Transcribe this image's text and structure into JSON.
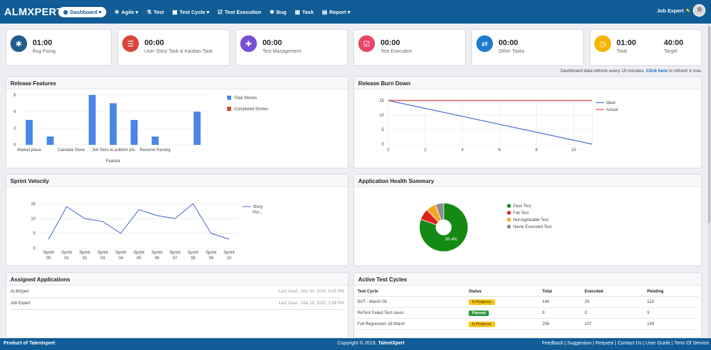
{
  "topbar": {
    "logo": "ALMXPERT",
    "nav": [
      {
        "label": "Dashboard",
        "icon": "palette-icon",
        "caret": "▾"
      },
      {
        "label": "Agile",
        "icon": "gear-icon",
        "caret": "▾"
      },
      {
        "label": "Test",
        "icon": "flask-icon",
        "caret": ""
      },
      {
        "label": "Test Cycle",
        "icon": "cycle-icon",
        "caret": "▾"
      },
      {
        "label": "Test Execution",
        "icon": "checkbox-icon",
        "caret": ""
      },
      {
        "label": "Bug",
        "icon": "bug-icon",
        "caret": ""
      },
      {
        "label": "Task",
        "icon": "task-icon",
        "caret": ""
      },
      {
        "label": "Report",
        "icon": "report-icon",
        "caret": "▾"
      }
    ],
    "user": "Job Expert"
  },
  "stats": [
    {
      "value": "01:00",
      "label": "Bug Fixing",
      "color": "#1f5d8c",
      "icon": "bug-icon"
    },
    {
      "value": "00:00",
      "label": "User Story Task & Kanban Task",
      "color": "#d9453a",
      "icon": "list-icon"
    },
    {
      "value": "00:00",
      "label": "Test Management",
      "color": "#7a4fd6",
      "icon": "plus-icon"
    },
    {
      "value": "00:00",
      "label": "Test Execution",
      "color": "#e8476a",
      "icon": "checkbox-icon"
    },
    {
      "value": "00:00",
      "label": "Other Tasks",
      "color": "#1d7ccf",
      "icon": "handshake-icon"
    },
    {
      "value": "01:00",
      "label": "Total",
      "value2": "40:00",
      "label2": "Target",
      "color": "#f4b400",
      "icon": "clock-icon"
    }
  ],
  "refresh": {
    "text": "Dashboard data refresh every 15 minutes.",
    "link": "Click here",
    "suffix": "to refresh it now."
  },
  "panels": {
    "release_features": "Release Features",
    "burn_down": "Release Burn Down",
    "velocity": "Sprint Velocity",
    "health": "Application Health Summary",
    "assigned": "Assigned Applications",
    "cycles": "Active Test Cycles"
  },
  "chart_data": [
    {
      "type": "bar",
      "xlabel": "Feature",
      "ylabel": "",
      "ylim": [
        0,
        6
      ],
      "yticks": [
        "0",
        "2",
        "4",
        "6"
      ],
      "categories": [
        "Market place",
        "",
        "Candate Store",
        "",
        "Job Slots to publish job",
        "",
        "Resume Parsing",
        "",
        ""
      ],
      "series": [
        {
          "name": "Total Stories",
          "color": "#4a86e8",
          "values": [
            3,
            1,
            0,
            6,
            5,
            3,
            1,
            0,
            4
          ]
        },
        {
          "name": "Completed Stories",
          "color": "#d9453a",
          "values": [
            0,
            0,
            0,
            0,
            0,
            0,
            0,
            0,
            0
          ]
        }
      ],
      "legend": "right"
    },
    {
      "type": "line",
      "xlim": [
        0,
        11
      ],
      "ylim": [
        0,
        15
      ],
      "xticks": [
        "0",
        "2",
        "4",
        "6",
        "8",
        "10"
      ],
      "yticks": [
        "0",
        "5",
        "10",
        "15"
      ],
      "series": [
        {
          "name": "Ideal",
          "color": "#4a6fd0",
          "x": [
            0,
            11
          ],
          "y": [
            15,
            0
          ]
        },
        {
          "name": "Actual",
          "color": "#d9453a",
          "x": [
            0,
            11
          ],
          "y": [
            15,
            15
          ]
        }
      ],
      "legend": "right"
    },
    {
      "type": "line",
      "ylim": [
        0,
        15
      ],
      "yticks": [
        "0",
        "5",
        "10",
        "15"
      ],
      "categories": [
        "Sprint 00",
        "Sprint 01",
        "Sprint 02",
        "Sprint 03",
        "Sprint 04",
        "Sprint 05",
        "Sprint 06",
        "Sprint 07",
        "Sprint 08",
        "Sprint 09",
        "Sprint 10"
      ],
      "series": [
        {
          "name": "Story Poi...",
          "color": "#4a6fd0",
          "values": [
            3,
            14,
            10,
            9,
            5,
            13,
            11,
            10,
            15,
            5,
            3
          ]
        }
      ],
      "legend": "right"
    },
    {
      "type": "pie",
      "center_label": "80.4%",
      "slices": [
        {
          "name": "Pass Test",
          "value": 80.4,
          "color": "#148a14"
        },
        {
          "name": "Fail Test",
          "value": 7.4,
          "color": "#e0201b"
        },
        {
          "name": "Not Applicable Test",
          "value": 6.7,
          "color": "#f5a623"
        },
        {
          "name": "Never Executed Test",
          "value": 5.5,
          "color": "#8c8c8c"
        }
      ],
      "legend": "right"
    }
  ],
  "assigned": [
    {
      "name": "ALMXpert",
      "last_used": "Last Used - Nov 20, 2019, 5:05 PM"
    },
    {
      "name": "Job Expert",
      "last_used": "Last Used - Mar 18, 2020, 2:49 PM"
    }
  ],
  "cycles": {
    "headers": [
      "Test Cycle",
      "Status",
      "Total",
      "Executed",
      "Pending"
    ],
    "rows": [
      {
        "name": "BVT - March 06",
        "status": "In Progress",
        "kind": "prog",
        "total": "144",
        "executed": "26",
        "pending": "118"
      },
      {
        "name": "ReTest Failed Test cases",
        "status": "Planned",
        "kind": "plan",
        "total": "9",
        "executed": "0",
        "pending": "9"
      },
      {
        "name": "Full Regression 18 March",
        "status": "In Progress",
        "kind": "prog",
        "total": "256",
        "executed": "107",
        "pending": "149"
      }
    ]
  },
  "footer": {
    "left": "Product of Talentxpert",
    "center_prefix": "Copyright © 2019, ",
    "center_brand": "TalentXpert",
    "links": [
      "Feedback",
      "Suggestion",
      "Request",
      "Contact Us",
      "User Guide",
      "Term Of Service"
    ]
  }
}
